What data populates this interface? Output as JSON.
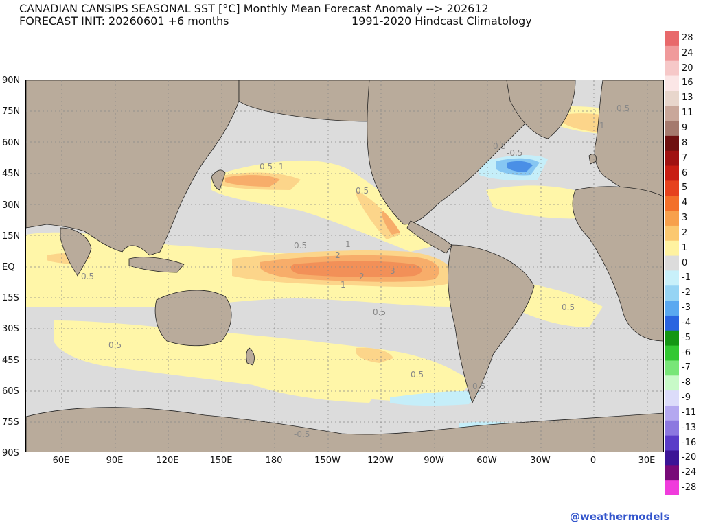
{
  "title": {
    "line1": "CANADIAN CANSIPS SEASONAL SST [°C] Monthly Mean Forecast Anomaly --> 202612",
    "line2_left": "FORECAST INIT: 20260601  +6 months",
    "line2_right": "1991-2020 Hindcast Climatology"
  },
  "lat_labels": [
    "90N",
    "75N",
    "60N",
    "45N",
    "30N",
    "15N",
    "EQ",
    "15S",
    "30S",
    "45S",
    "60S",
    "75S",
    "90S"
  ],
  "lon_labels": [
    "60E",
    "90E",
    "120E",
    "150E",
    "180",
    "150W",
    "120W",
    "90W",
    "60W",
    "30W",
    "0",
    "30E"
  ],
  "colorbar": {
    "labels": [
      "28",
      "24",
      "20",
      "16",
      "13",
      "11",
      "9",
      "8",
      "7",
      "6",
      "5",
      "4",
      "3",
      "2",
      "1",
      "0",
      "-1",
      "-2",
      "-3",
      "-4",
      "-5",
      "-6",
      "-7",
      "-8",
      "-9",
      "-11",
      "-13",
      "-16",
      "-20",
      "-24",
      "-28"
    ],
    "colors": [
      "#e8696b",
      "#f09a9b",
      "#f6c8c8",
      "#fbe6e6",
      "#e8d6cc",
      "#c9a79a",
      "#a57a6e",
      "#6e1010",
      "#a01212",
      "#c81e14",
      "#e6421e",
      "#f3702a",
      "#f7a04c",
      "#fbc870",
      "#fff2a0",
      "#dcdcdc",
      "#c8f0fa",
      "#96d4f4",
      "#5aa8f0",
      "#2a64e0",
      "#149614",
      "#32c832",
      "#78e678",
      "#c8fac8",
      "#dcdcfa",
      "#b4a8f0",
      "#8c78e0",
      "#5a3cc8",
      "#3c1496",
      "#780a78",
      "#f03cdc"
    ]
  },
  "contour_labels": [
    "0.5",
    "1",
    "2",
    "3",
    "-0.5"
  ],
  "colors": {
    "land": "#b9ab9b",
    "ocean_neutral": "#dcdcdc",
    "pos_0_5": "#fff6a8",
    "pos_1": "#fcd58a",
    "pos_2": "#f7ad6a",
    "pos_3": "#f29058",
    "neg_0_5": "#c5eef9",
    "neg_1": "#86c6f2",
    "neg_2": "#4a8fe6"
  },
  "watermark": "@weathermodels"
}
